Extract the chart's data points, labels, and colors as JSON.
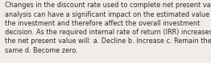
{
  "lines": [
    "Changes in the discount rate used to complete net present value",
    "analysis can have a significant impact on the estimated value of",
    "the investment and therefore affect the overall investment",
    "decision. As the required internal rate of return (IRR) increases,",
    "the net present value will: a. Decline b. Increase c. Remain the",
    "same d. Become zero."
  ],
  "background_color": "#f0ede8",
  "text_color": "#2c2c2c",
  "font_size": 5.85,
  "fig_width": 2.62,
  "fig_height": 0.79,
  "dpi": 100
}
